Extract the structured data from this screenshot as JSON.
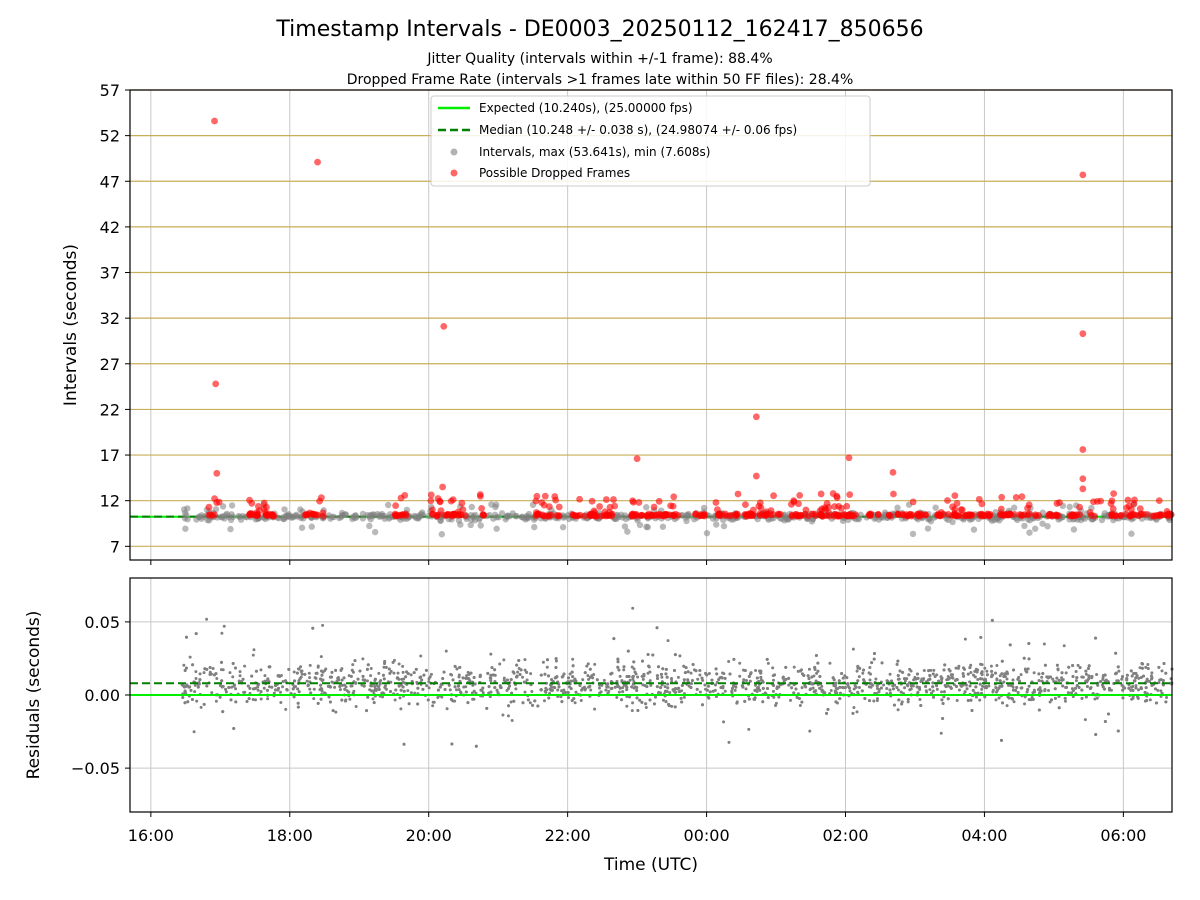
{
  "chart_data": [
    {
      "type": "scatter",
      "title": "Timestamp Intervals - DE0003_20250112_162417_850656",
      "subtitle_lines": [
        "Jitter Quality (intervals within +/-1 frame): 88.4%",
        "Dropped Frame Rate (intervals >1 frames late within 50 FF files): 28.4%"
      ],
      "ylabel": "Intervals (seconds)",
      "ylim": [
        5.5,
        57
      ],
      "yticks": [
        "57",
        "52",
        "47",
        "42",
        "37",
        "32",
        "27",
        "22",
        "17",
        "12",
        "7"
      ],
      "horizontal_gridlines": "goldenrod",
      "legend": {
        "position": "top-center",
        "entries": [
          "Expected (10.240s), (25.00000 fps)",
          "Median (10.248 +/- 0.038 s), (24.98074 +/- 0.06 fps)",
          "Intervals, max (53.641s), min (7.608s)",
          "Possible Dropped Frames"
        ]
      },
      "expected_interval": 10.24,
      "median_interval": 10.248,
      "colors": {
        "expected": "#00ee00",
        "median": "#008000",
        "intervals": "#808080",
        "dropped": "#ff0000",
        "grid": "#c8ae56"
      },
      "series": [
        {
          "name": "Possible Dropped Frames",
          "note": "outliers; dense band of points near 10.3-13 s across whole range",
          "x": [
            "16:55",
            "16:56",
            "16:57",
            "18:24",
            "20:13",
            "20:12",
            "23:00",
            "00:43",
            "00:43",
            "02:03",
            "02:41",
            "05:25",
            "05:25",
            "05:25",
            "05:25",
            "05:25"
          ],
          "values": [
            53.6,
            24.8,
            15.0,
            49.1,
            31.1,
            13.5,
            16.6,
            21.2,
            14.7,
            16.7,
            15.1,
            47.7,
            30.3,
            17.6,
            14.4,
            13.3
          ]
        }
      ]
    },
    {
      "type": "scatter",
      "ylabel": "Residuals (seconds)",
      "xlabel": "Time (UTC)",
      "ylim": [
        -0.08,
        0.08
      ],
      "yticks": [
        "0.05",
        "0.00",
        "−0.05"
      ],
      "xticks": [
        "16:00",
        "18:00",
        "20:00",
        "22:00",
        "00:00",
        "02:00",
        "04:00",
        "06:00"
      ],
      "x_range": [
        "15:42",
        "06:42"
      ],
      "expected_residual": 0.0,
      "median_residual": 0.008,
      "series": [
        {
          "name": "Residuals",
          "note": "about 3000 points spread mostly within -0.03..0.05 s"
        }
      ]
    }
  ]
}
